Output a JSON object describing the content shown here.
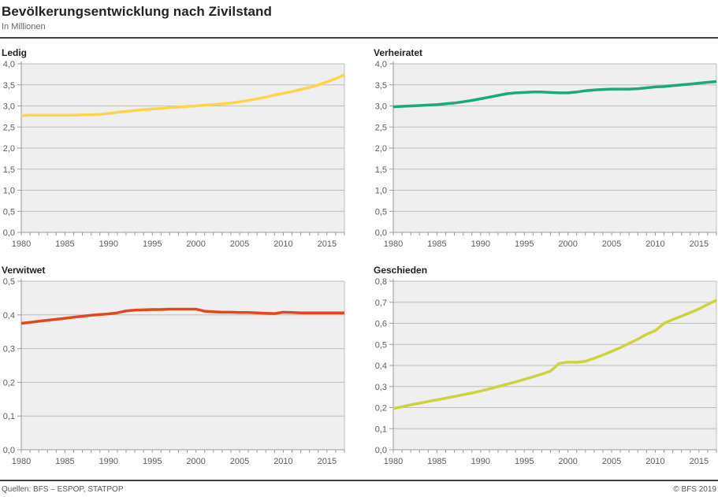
{
  "header": {
    "title": "Bevölkerungsentwicklung nach Zivilstand",
    "subtitle": "In Millionen"
  },
  "footer": {
    "sources": "Quellen: BFS – ESPOP, STATPOP",
    "copyright": "© BFS 2019"
  },
  "style": {
    "plot_bg": "#efefef",
    "grid": "#bdbdbd",
    "axis": "#9a9a9a",
    "tick_text": "#5c5c5c"
  },
  "chart_data": [
    {
      "type": "line",
      "id": "ledig",
      "title": "Ledig",
      "color": "#FDD44A",
      "ylim": [
        0,
        4.0
      ],
      "ytick_labels": [
        "0,0",
        "0,5",
        "1,0",
        "1,5",
        "2,0",
        "2,5",
        "3,0",
        "3,5",
        "4,0"
      ],
      "xtick_labels": [
        "1980",
        "1985",
        "1990",
        "1995",
        "2000",
        "2005",
        "2010",
        "2015"
      ],
      "x": [
        1980,
        1981,
        1982,
        1983,
        1984,
        1985,
        1986,
        1987,
        1988,
        1989,
        1990,
        1991,
        1992,
        1993,
        1994,
        1995,
        1996,
        1997,
        1998,
        1999,
        2000,
        2001,
        2002,
        2003,
        2004,
        2005,
        2006,
        2007,
        2008,
        2009,
        2010,
        2011,
        2012,
        2013,
        2014,
        2015,
        2016,
        2017
      ],
      "values": [
        2.77,
        2.78,
        2.78,
        2.78,
        2.78,
        2.78,
        2.78,
        2.79,
        2.79,
        2.8,
        2.82,
        2.85,
        2.87,
        2.89,
        2.91,
        2.93,
        2.94,
        2.96,
        2.97,
        2.99,
        3.0,
        3.02,
        3.03,
        3.05,
        3.07,
        3.1,
        3.13,
        3.17,
        3.21,
        3.26,
        3.3,
        3.34,
        3.39,
        3.44,
        3.5,
        3.57,
        3.65,
        3.74
      ]
    },
    {
      "type": "line",
      "id": "verheiratet",
      "title": "Verheiratet",
      "color": "#1BA87C",
      "ylim": [
        0,
        4.0
      ],
      "ytick_labels": [
        "0,0",
        "0,5",
        "1,0",
        "1,5",
        "2,0",
        "2,5",
        "3,0",
        "3,5",
        "4,0"
      ],
      "xtick_labels": [
        "1980",
        "1985",
        "1990",
        "1995",
        "2000",
        "2005",
        "2010",
        "2015"
      ],
      "x": [
        1980,
        1981,
        1982,
        1983,
        1984,
        1985,
        1986,
        1987,
        1988,
        1989,
        1990,
        1991,
        1992,
        1993,
        1994,
        1995,
        1996,
        1997,
        1998,
        1999,
        2000,
        2001,
        2002,
        2003,
        2004,
        2005,
        2006,
        2007,
        2008,
        2009,
        2010,
        2011,
        2012,
        2013,
        2014,
        2015,
        2016,
        2017
      ],
      "values": [
        2.98,
        2.99,
        3.0,
        3.01,
        3.02,
        3.03,
        3.05,
        3.07,
        3.1,
        3.13,
        3.17,
        3.21,
        3.25,
        3.29,
        3.31,
        3.32,
        3.33,
        3.33,
        3.32,
        3.31,
        3.31,
        3.33,
        3.36,
        3.38,
        3.39,
        3.4,
        3.4,
        3.4,
        3.41,
        3.43,
        3.45,
        3.46,
        3.48,
        3.5,
        3.52,
        3.54,
        3.56,
        3.58
      ]
    },
    {
      "type": "line",
      "id": "verwitwet",
      "title": "Verwitwet",
      "color": "#E2481E",
      "ylim": [
        0,
        0.5
      ],
      "ytick_labels": [
        "0,0",
        "0,1",
        "0,2",
        "0,3",
        "0,4",
        "0,5"
      ],
      "xtick_labels": [
        "1980",
        "1985",
        "1990",
        "1995",
        "2000",
        "2005",
        "2010",
        "2015"
      ],
      "x": [
        1980,
        1981,
        1982,
        1983,
        1984,
        1985,
        1986,
        1987,
        1988,
        1989,
        1990,
        1991,
        1992,
        1993,
        1994,
        1995,
        1996,
        1997,
        1998,
        1999,
        2000,
        2001,
        2002,
        2003,
        2004,
        2005,
        2006,
        2007,
        2008,
        2009,
        2010,
        2011,
        2012,
        2013,
        2014,
        2015,
        2016,
        2017
      ],
      "values": [
        0.375,
        0.378,
        0.381,
        0.384,
        0.387,
        0.39,
        0.393,
        0.396,
        0.399,
        0.401,
        0.403,
        0.406,
        0.412,
        0.414,
        0.415,
        0.416,
        0.416,
        0.417,
        0.417,
        0.417,
        0.417,
        0.411,
        0.409,
        0.408,
        0.408,
        0.407,
        0.407,
        0.406,
        0.405,
        0.404,
        0.408,
        0.407,
        0.406,
        0.406,
        0.406,
        0.406,
        0.406,
        0.406
      ]
    },
    {
      "type": "line",
      "id": "geschieden",
      "title": "Geschieden",
      "color": "#CFD23F",
      "ylim": [
        0,
        0.8
      ],
      "ytick_labels": [
        "0,0",
        "0,1",
        "0,2",
        "0,3",
        "0,4",
        "0,5",
        "0,6",
        "0,7",
        "0,8"
      ],
      "xtick_labels": [
        "1980",
        "1985",
        "1990",
        "1995",
        "2000",
        "2005",
        "2010",
        "2015"
      ],
      "x": [
        1980,
        1981,
        1982,
        1983,
        1984,
        1985,
        1986,
        1987,
        1988,
        1989,
        1990,
        1991,
        1992,
        1993,
        1994,
        1995,
        1996,
        1997,
        1998,
        1999,
        2000,
        2001,
        2002,
        2003,
        2004,
        2005,
        2006,
        2007,
        2008,
        2009,
        2010,
        2011,
        2012,
        2013,
        2014,
        2015,
        2016,
        2017
      ],
      "values": [
        0.195,
        0.204,
        0.213,
        0.221,
        0.229,
        0.237,
        0.245,
        0.253,
        0.261,
        0.269,
        0.278,
        0.289,
        0.3,
        0.311,
        0.322,
        0.334,
        0.346,
        0.359,
        0.373,
        0.41,
        0.416,
        0.415,
        0.42,
        0.434,
        0.45,
        0.467,
        0.485,
        0.505,
        0.525,
        0.548,
        0.565,
        0.6,
        0.618,
        0.634,
        0.651,
        0.668,
        0.69,
        0.71
      ]
    }
  ]
}
